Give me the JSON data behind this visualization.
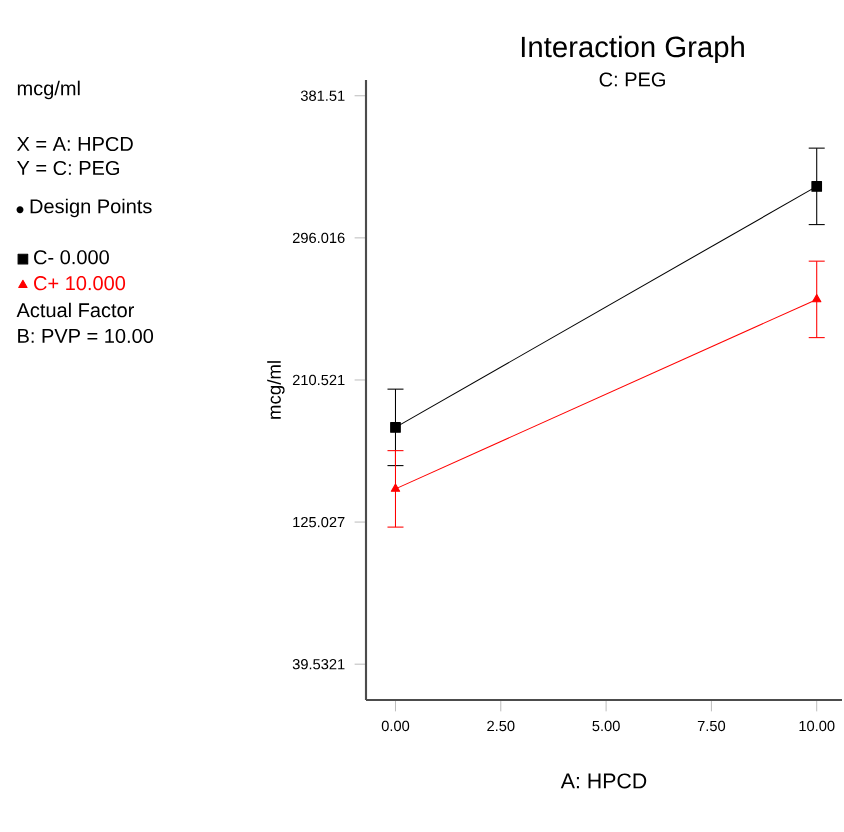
{
  "chart_data": {
    "type": "line",
    "title": "Interaction Graph",
    "subtitle": "C: PEG",
    "xlabel": "A: HPCD",
    "ylabel": "mcg/ml",
    "annotations": [
      "mcg/ml",
      "X = A: HPCD",
      "Y = C: PEG",
      "Design Points",
      "Actual Factor",
      "B: PVP = 10.00"
    ],
    "x": [
      0,
      10
    ],
    "series": [
      {
        "name": "C- 0.000",
        "color": "#000000",
        "marker": "square",
        "values": [
          182,
          327
        ],
        "errors": [
          23,
          23
        ]
      },
      {
        "name": "C+ 10.000",
        "color": "#ff0000",
        "marker": "triangle",
        "values": [
          145,
          259
        ],
        "errors": [
          23,
          23
        ]
      }
    ],
    "xlim": [
      -0.7,
      10.6
    ],
    "ylim": [
      18,
      391
    ],
    "xticks": [
      {
        "value": 0,
        "label": "0.00"
      },
      {
        "value": 2.5,
        "label": "2.50"
      },
      {
        "value": 5,
        "label": "5.00"
      },
      {
        "value": 7.5,
        "label": "7.50"
      },
      {
        "value": 10,
        "label": "10.00"
      }
    ],
    "yticks": [
      39.5321,
      125.027,
      210.521,
      296.016,
      381.51
    ],
    "grid": false,
    "legend": "left"
  }
}
